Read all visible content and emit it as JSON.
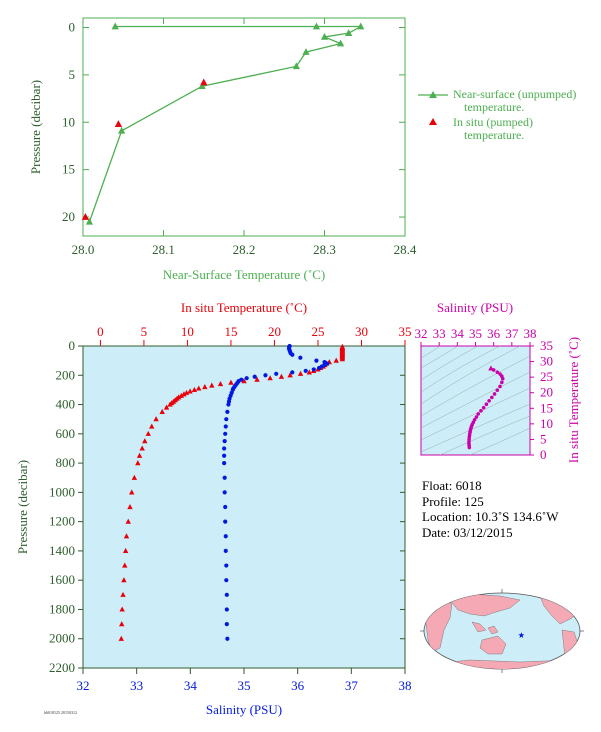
{
  "colors": {
    "green": "#4caf50",
    "red": "#e8000b",
    "blue": "#0019e0",
    "magenta": "#cc00aa",
    "axis_green": "#2e5e2e",
    "plot_bg": "#cdeef8",
    "land": "#f4a9b4",
    "ocean": "#cdeef8"
  },
  "chart_data": [
    {
      "type": "line",
      "title": "",
      "xlabel": "Near-Surface Temperature (˚C)",
      "ylabel": "Pressure (decibar)",
      "xlim": [
        28.0,
        28.4
      ],
      "ylim": [
        22,
        -1
      ],
      "y_inverted": true,
      "xticks": [
        "28.0",
        "28.1",
        "28.2",
        "28.3",
        "28.4"
      ],
      "yticks": [
        "0",
        "5",
        "10",
        "15",
        "20"
      ],
      "legend_position": "right",
      "series": [
        {
          "name": "Near-surface (unpumped) temperature.",
          "marker": "triangle-line",
          "color": "#4caf50",
          "x": [
            28.04,
            28.29,
            28.345,
            28.33,
            28.3,
            28.32,
            28.277,
            28.265,
            28.148,
            28.048,
            28.008
          ],
          "y": [
            -0.1,
            -0.1,
            -0.1,
            0.6,
            1.0,
            1.7,
            2.6,
            4.1,
            6.2,
            10.9,
            20.5
          ]
        },
        {
          "name": "In situ (pumped) temperature.",
          "marker": "triangle",
          "color": "#e8000b",
          "x": [
            28.15,
            28.044,
            28.003
          ],
          "y": [
            5.8,
            10.2,
            20.0
          ]
        }
      ],
      "legend_entries": [
        "Near-surface (unpumped) temperature.",
        "In situ (pumped) temperature."
      ]
    },
    {
      "type": "scatter",
      "title": "",
      "x_top_label": "In situ Temperature (˚C)",
      "x_bottom_label": "Salinity (PSU)",
      "ylabel": "Pressure (decibar)",
      "x_top_lim": [
        -2,
        35
      ],
      "x_top_ticks": [
        "0",
        "5",
        "10",
        "15",
        "20",
        "25",
        "30",
        "35"
      ],
      "x_bottom_lim": [
        32,
        38
      ],
      "x_bottom_ticks": [
        "32",
        "33",
        "34",
        "35",
        "36",
        "37",
        "38"
      ],
      "ylim": [
        2200,
        0
      ],
      "y_inverted": true,
      "yticks": [
        "0",
        "200",
        "400",
        "600",
        "800",
        "1000",
        "1200",
        "1400",
        "1600",
        "1800",
        "2000",
        "2200"
      ],
      "temperature": {
        "color": "#e8000b",
        "p": [
          5,
          10,
          15,
          20,
          25,
          30,
          35,
          40,
          45,
          50,
          55,
          60,
          65,
          70,
          75,
          80,
          90,
          100,
          110,
          120,
          130,
          140,
          150,
          160,
          170,
          180,
          190,
          200,
          210,
          220,
          230,
          240,
          250,
          260,
          270,
          280,
          290,
          300,
          310,
          320,
          330,
          340,
          350,
          360,
          370,
          380,
          390,
          400,
          420,
          450,
          500,
          550,
          600,
          650,
          700,
          750,
          800,
          900,
          1000,
          1100,
          1200,
          1300,
          1400,
          1500,
          1600,
          1700,
          1800,
          1900,
          2000
        ],
        "values": [
          27.8,
          27.8,
          27.8,
          27.8,
          27.8,
          27.8,
          27.8,
          27.8,
          27.8,
          27.8,
          27.8,
          27.8,
          27.8,
          27.8,
          27.8,
          27.8,
          27.8,
          27.1,
          26.3,
          26.0,
          25.8,
          25.6,
          25.3,
          25.0,
          24.5,
          24.0,
          23.0,
          21.8,
          20.8,
          19.5,
          18.0,
          16.5,
          15.0,
          13.8,
          12.8,
          12.0,
          11.3,
          10.8,
          10.3,
          9.9,
          9.6,
          9.3,
          9.0,
          8.8,
          8.6,
          8.4,
          8.2,
          8.0,
          7.6,
          7.1,
          6.4,
          5.9,
          5.5,
          5.1,
          4.8,
          4.5,
          4.3,
          3.9,
          3.6,
          3.4,
          3.2,
          3.0,
          2.9,
          2.8,
          2.7,
          2.6,
          2.5,
          2.45,
          2.4
        ]
      },
      "salinity": {
        "color": "#0019e0",
        "p": [
          0,
          10,
          20,
          30,
          40,
          50,
          60,
          80,
          100,
          110,
          120,
          130,
          140,
          150,
          160,
          170,
          180,
          190,
          200,
          210,
          220,
          230,
          240,
          250,
          260,
          270,
          280,
          290,
          300,
          320,
          340,
          360,
          380,
          400,
          450,
          500,
          550,
          600,
          650,
          700,
          750,
          800,
          900,
          1000,
          1100,
          1200,
          1300,
          1400,
          1500,
          1600,
          1700,
          1800,
          1900,
          2000
        ],
        "values": [
          35.85,
          35.84,
          35.84,
          35.85,
          35.86,
          35.87,
          35.9,
          36.05,
          36.35,
          36.5,
          36.55,
          36.5,
          36.45,
          36.4,
          36.3,
          36.15,
          35.9,
          35.6,
          35.4,
          35.2,
          35.05,
          34.95,
          34.9,
          34.88,
          34.86,
          34.84,
          34.82,
          34.8,
          34.79,
          34.77,
          34.75,
          34.73,
          34.72,
          34.71,
          34.69,
          34.67,
          34.66,
          34.65,
          34.64,
          34.63,
          34.63,
          34.63,
          34.64,
          34.64,
          34.65,
          34.65,
          34.66,
          34.66,
          34.67,
          34.67,
          34.68,
          34.68,
          34.68,
          34.69
        ]
      }
    },
    {
      "type": "scatter",
      "title": "",
      "x_top_label": "Salinity (PSU)",
      "y_right_label": "In situ Temperature (˚C)",
      "xlim": [
        32,
        38
      ],
      "xticks": [
        "32",
        "33",
        "34",
        "35",
        "36",
        "37",
        "38"
      ],
      "ylim": [
        0,
        35
      ],
      "yticks": [
        "0",
        "5",
        "10",
        "15",
        "20",
        "25",
        "30",
        "35"
      ],
      "points": {
        "color": "#cc00aa",
        "salinity": [
          34.66,
          34.65,
          34.64,
          34.64,
          34.65,
          34.66,
          34.68,
          34.7,
          34.72,
          34.75,
          34.78,
          34.82,
          34.88,
          34.95,
          35.05,
          35.15,
          35.3,
          35.45,
          35.6,
          35.75,
          35.9,
          36.05,
          36.2,
          36.35,
          36.45,
          36.5,
          36.45,
          36.35,
          36.2,
          36.0,
          35.85
        ],
        "temperature": [
          2.4,
          3.0,
          3.6,
          4.3,
          5.1,
          5.9,
          6.6,
          7.3,
          8.0,
          8.6,
          9.2,
          9.8,
          10.5,
          11.3,
          12.2,
          13.2,
          14.2,
          15.2,
          16.3,
          17.4,
          18.5,
          19.6,
          20.8,
          22.0,
          23.3,
          24.5,
          25.3,
          26.0,
          26.6,
          27.3,
          27.8
        ]
      }
    }
  ],
  "float_info": {
    "float": "Float:  6018",
    "profile": "Profile:  125",
    "location": "Location:  10.3˚S  134.6˚W",
    "date": "Date:  03/12/2015"
  },
  "map": {
    "marker_icon": "star-icon",
    "marker_lat": -10.3,
    "marker_lon": -134.6
  },
  "footer": {
    "stamp": "h6018125 20150312"
  }
}
